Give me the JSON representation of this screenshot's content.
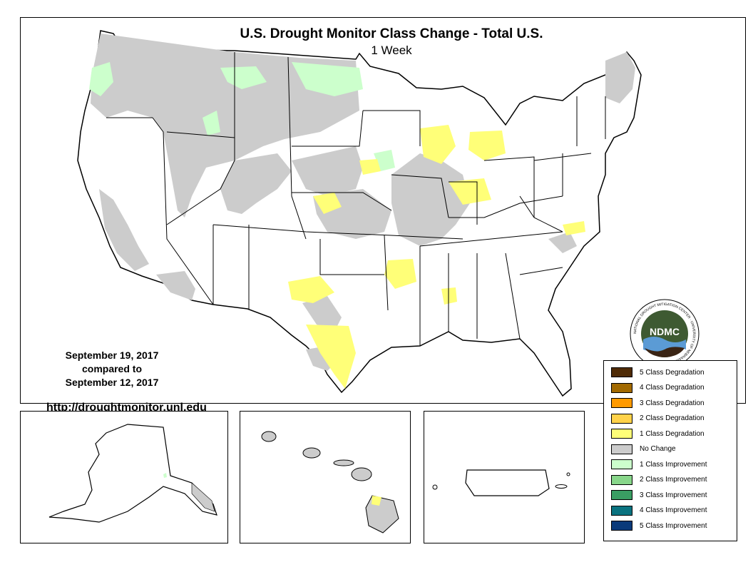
{
  "header": {
    "title": "U.S. Drought Monitor Class Change - Total U.S.",
    "subtitle": "1 Week"
  },
  "dates": {
    "current": "September 19, 2017",
    "compared": "compared to",
    "previous": "September 12, 2017"
  },
  "url": "http://droughtmonitor.unl.edu",
  "logo": {
    "text": "NDMC",
    "ring_text": "NATIONAL DROUGHT MITIGATION CENTER · UNIVERSITY OF NEBRASKA"
  },
  "legend": {
    "items": [
      {
        "label": "5 Class Degradation",
        "color": "#4f2b06"
      },
      {
        "label": "4 Class Degradation",
        "color": "#a26a00"
      },
      {
        "label": "3 Class Degradation",
        "color": "#ff9a00"
      },
      {
        "label": "2 Class Degradation",
        "color": "#ffd24a"
      },
      {
        "label": "1 Class Degradation",
        "color": "#ffff78"
      },
      {
        "label": "No Change",
        "color": "#cccccc"
      },
      {
        "label": "1 Class Improvement",
        "color": "#ccffcc"
      },
      {
        "label": "2 Class Improvement",
        "color": "#88d68a"
      },
      {
        "label": "3 Class Improvement",
        "color": "#3a9e63"
      },
      {
        "label": "4 Class Improvement",
        "color": "#0a7380"
      },
      {
        "label": "5 Class Improvement",
        "color": "#0a3a7a"
      }
    ]
  }
}
